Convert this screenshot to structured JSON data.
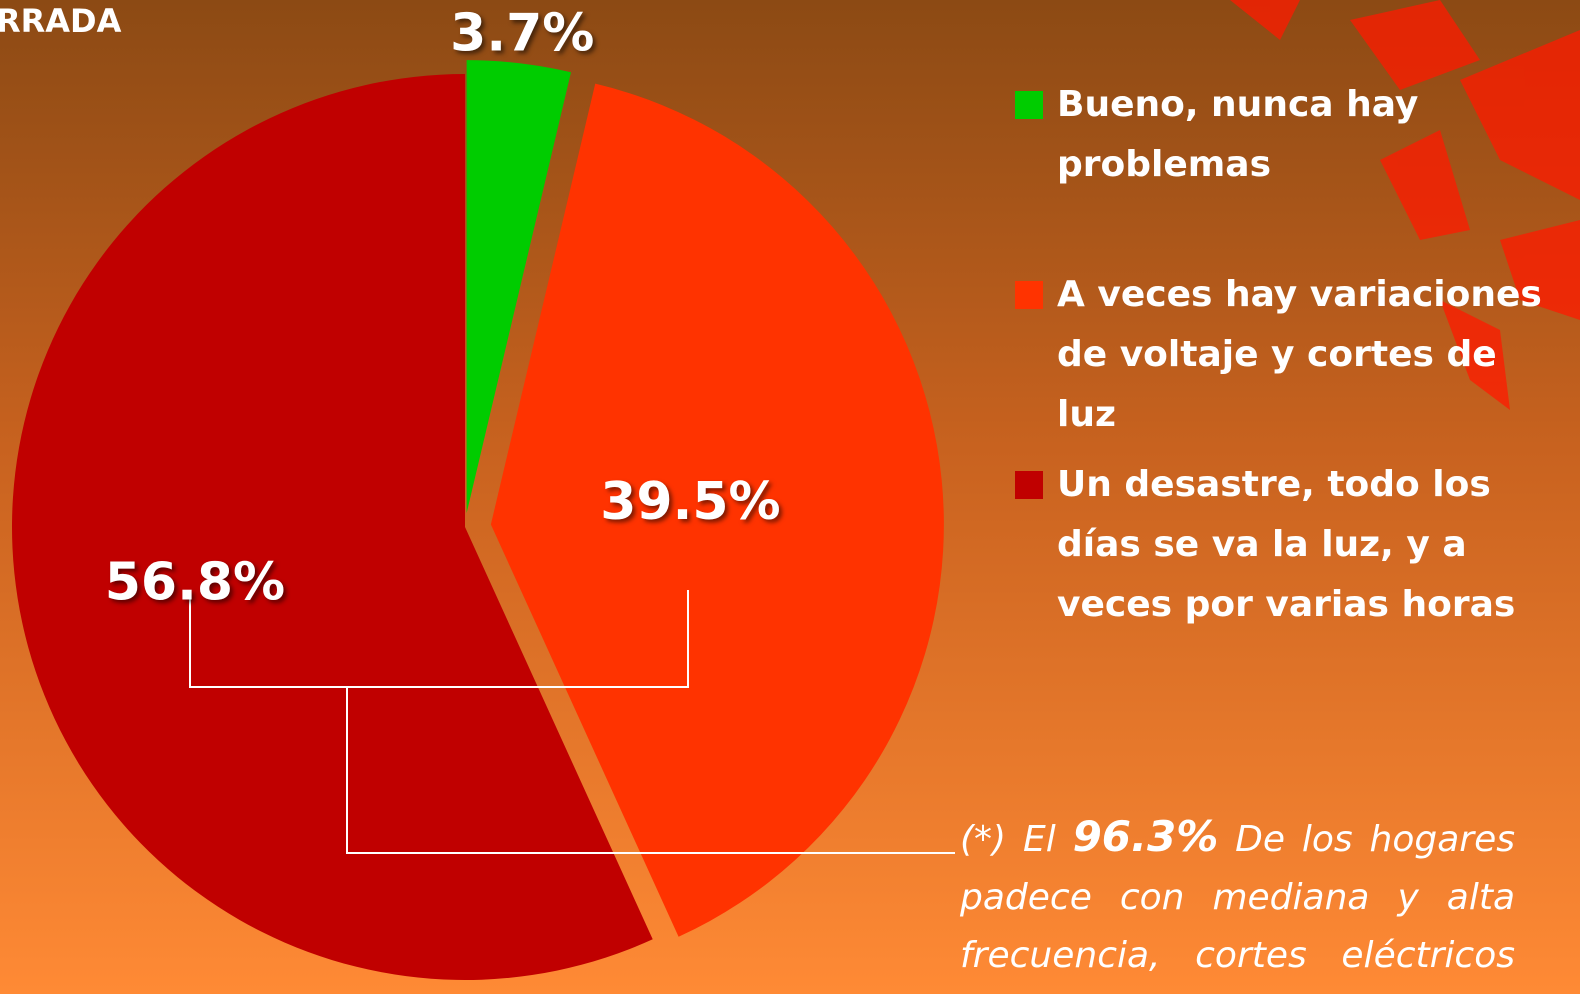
{
  "chart_data": {
    "type": "pie",
    "title": "RRADA",
    "categories": [
      "Bueno, nunca hay problemas",
      "A veces hay variaciones de voltaje y cortes de luz",
      "Un desastre, todo los días se va la luz, y a veces por varias horas"
    ],
    "values": [
      3.7,
      39.5,
      56.8
    ],
    "value_labels": [
      "3.7%",
      "39.5%",
      "56.8%"
    ],
    "colors": [
      "#00cc00",
      "#ff3300",
      "#c00000"
    ],
    "legend": "right",
    "annotation": {
      "prefix": "(*) El",
      "highlight": "96.3%",
      "text": "De los hogares padece con mediana y alta frecuencia, cortes eléctricos"
    }
  }
}
